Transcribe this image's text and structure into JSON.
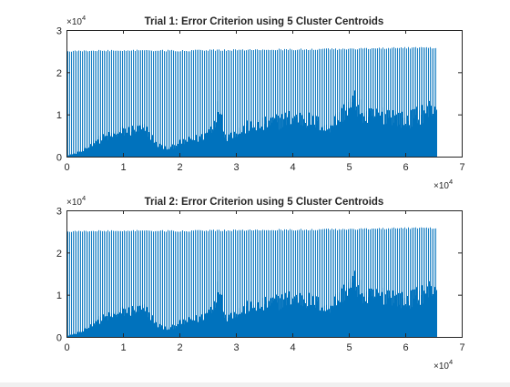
{
  "chart_data": [
    {
      "type": "line",
      "title": "Trial 1: Error Criterion using 5 Cluster Centroids",
      "xlabel": "",
      "ylabel": "",
      "xlim": [
        0,
        70000
      ],
      "ylim": [
        0,
        30000
      ],
      "xticks": [
        0,
        10000,
        20000,
        30000,
        40000,
        50000,
        60000,
        70000
      ],
      "yticks": [
        0,
        10000,
        20000,
        30000
      ],
      "xtick_labels": [
        "0",
        "1",
        "2",
        "3",
        "4",
        "5",
        "6",
        "7"
      ],
      "ytick_labels": [
        "0",
        "1",
        "2",
        "3"
      ],
      "x_exponent_label": "×10",
      "x_exponent_power": "4",
      "y_exponent_label": "×10",
      "y_exponent_power": "4",
      "grid": false,
      "color": "#0072BD",
      "series": [
        {
          "x_range": [
            1,
            65536
          ],
          "peak_envelope": [
            {
              "x": 0,
              "y": 25200
            },
            {
              "x": 10000,
              "y": 25400
            },
            {
              "x": 20000,
              "y": 25300
            },
            {
              "x": 30000,
              "y": 25500
            },
            {
              "x": 40000,
              "y": 25600
            },
            {
              "x": 50000,
              "y": 25700
            },
            {
              "x": 60000,
              "y": 26000
            },
            {
              "x": 65536,
              "y": 26000
            }
          ],
          "dense_upper": [
            {
              "x": 0,
              "y": 200
            },
            {
              "x": 3000,
              "y": 1500
            },
            {
              "x": 5000,
              "y": 4000
            },
            {
              "x": 10000,
              "y": 6500
            },
            {
              "x": 14000,
              "y": 7000
            },
            {
              "x": 16000,
              "y": 3000
            },
            {
              "x": 18000,
              "y": 2000
            },
            {
              "x": 20000,
              "y": 3500
            },
            {
              "x": 24000,
              "y": 5000
            },
            {
              "x": 26000,
              "y": 8000
            },
            {
              "x": 27000,
              "y": 14500
            },
            {
              "x": 28000,
              "y": 5000
            },
            {
              "x": 32000,
              "y": 7500
            },
            {
              "x": 36000,
              "y": 8500
            },
            {
              "x": 40000,
              "y": 10000
            },
            {
              "x": 44000,
              "y": 9000
            },
            {
              "x": 46000,
              "y": 7000
            },
            {
              "x": 49000,
              "y": 11500
            },
            {
              "x": 51000,
              "y": 14000
            },
            {
              "x": 53000,
              "y": 10000
            },
            {
              "x": 57000,
              "y": 11000
            },
            {
              "x": 60000,
              "y": 9000
            },
            {
              "x": 65536,
              "y": 13000
            }
          ]
        }
      ]
    },
    {
      "type": "line",
      "title": "Trial 2: Error Criterion using 5 Cluster Centroids",
      "xlabel": "",
      "ylabel": "",
      "xlim": [
        0,
        70000
      ],
      "ylim": [
        0,
        30000
      ],
      "xticks": [
        0,
        10000,
        20000,
        30000,
        40000,
        50000,
        60000,
        70000
      ],
      "yticks": [
        0,
        10000,
        20000,
        30000
      ],
      "xtick_labels": [
        "0",
        "1",
        "2",
        "3",
        "4",
        "5",
        "6",
        "7"
      ],
      "ytick_labels": [
        "0",
        "1",
        "2",
        "3"
      ],
      "x_exponent_label": "×10",
      "x_exponent_power": "4",
      "y_exponent_label": "×10",
      "y_exponent_power": "4",
      "grid": false,
      "color": "#0072BD",
      "series": [
        {
          "x_range": [
            1,
            65536
          ],
          "peak_envelope": [
            {
              "x": 0,
              "y": 25200
            },
            {
              "x": 10000,
              "y": 25400
            },
            {
              "x": 20000,
              "y": 25300
            },
            {
              "x": 30000,
              "y": 25500
            },
            {
              "x": 40000,
              "y": 25600
            },
            {
              "x": 50000,
              "y": 25700
            },
            {
              "x": 60000,
              "y": 26000
            },
            {
              "x": 65536,
              "y": 26000
            }
          ],
          "dense_upper": [
            {
              "x": 0,
              "y": 200
            },
            {
              "x": 3000,
              "y": 1500
            },
            {
              "x": 5000,
              "y": 4000
            },
            {
              "x": 10000,
              "y": 6500
            },
            {
              "x": 14000,
              "y": 7000
            },
            {
              "x": 16000,
              "y": 3000
            },
            {
              "x": 18000,
              "y": 2000
            },
            {
              "x": 20000,
              "y": 3500
            },
            {
              "x": 24000,
              "y": 5000
            },
            {
              "x": 26000,
              "y": 8000
            },
            {
              "x": 27000,
              "y": 14500
            },
            {
              "x": 28000,
              "y": 5000
            },
            {
              "x": 32000,
              "y": 7500
            },
            {
              "x": 36000,
              "y": 8500
            },
            {
              "x": 40000,
              "y": 10000
            },
            {
              "x": 44000,
              "y": 9000
            },
            {
              "x": 46000,
              "y": 7000
            },
            {
              "x": 49000,
              "y": 11500
            },
            {
              "x": 51000,
              "y": 14000
            },
            {
              "x": 53000,
              "y": 10000
            },
            {
              "x": 57000,
              "y": 11000
            },
            {
              "x": 60000,
              "y": 9000
            },
            {
              "x": 65536,
              "y": 13000
            }
          ]
        }
      ]
    }
  ]
}
